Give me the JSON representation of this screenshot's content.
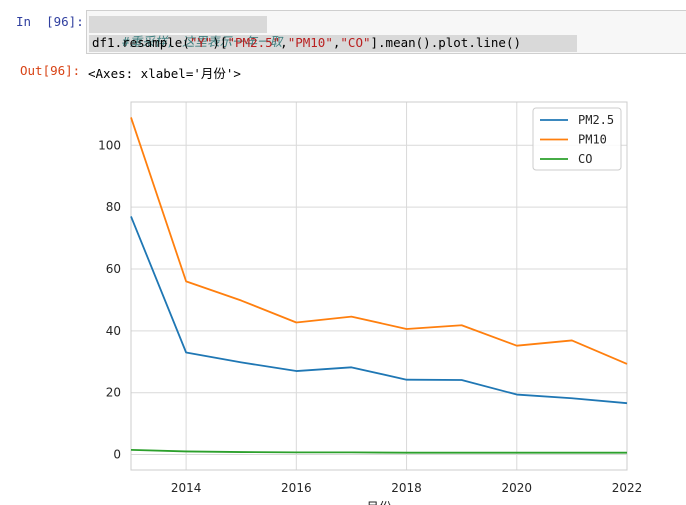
{
  "cell_in": {
    "prompt": "In  [96]:",
    "comment": "#重采样, 这里表示一年一取",
    "code_parts": [
      {
        "t": "df1.resample(",
        "c": ""
      },
      {
        "t": "\"Y\"",
        "c": "str"
      },
      {
        "t": ")[",
        "c": ""
      },
      {
        "t": "\"PM2.5\"",
        "c": "str"
      },
      {
        "t": ",",
        "c": ""
      },
      {
        "t": "\"PM10\"",
        "c": "str"
      },
      {
        "t": ",",
        "c": ""
      },
      {
        "t": "\"CO\"",
        "c": "str"
      },
      {
        "t": "].mean().plot.line()",
        "c": ""
      }
    ]
  },
  "cell_out": {
    "prompt": "Out[96]:",
    "text": "<Axes: xlabel='月份'>"
  },
  "colors": {
    "PM2.5": "#1f77b4",
    "PM10": "#ff7f0e",
    "CO": "#2ca02c",
    "grid": "#d9d9d9"
  },
  "chart_data": {
    "type": "line",
    "title": "",
    "xlabel": "月份",
    "ylabel": "",
    "x": [
      2013,
      2014,
      2015,
      2016,
      2017,
      2018,
      2019,
      2020,
      2021,
      2022
    ],
    "xlim": [
      2013,
      2022
    ],
    "ylim": [
      -5,
      114
    ],
    "x_ticks": [
      2014,
      2016,
      2018,
      2020,
      2022
    ],
    "y_ticks": [
      0,
      20,
      40,
      60,
      80,
      100
    ],
    "grid": true,
    "legend_position": "top-right",
    "series": [
      {
        "name": "PM2.5",
        "values": [
          77,
          33,
          29.8,
          27,
          28.2,
          24.2,
          24.1,
          19.4,
          18.2,
          16.6
        ]
      },
      {
        "name": "PM10",
        "values": [
          109,
          56,
          49.8,
          42.7,
          44.6,
          40.6,
          41.8,
          35.2,
          36.9,
          29.3
        ]
      },
      {
        "name": "CO",
        "values": [
          1.5,
          1.0,
          0.8,
          0.7,
          0.7,
          0.6,
          0.6,
          0.6,
          0.6,
          0.6
        ]
      }
    ]
  }
}
